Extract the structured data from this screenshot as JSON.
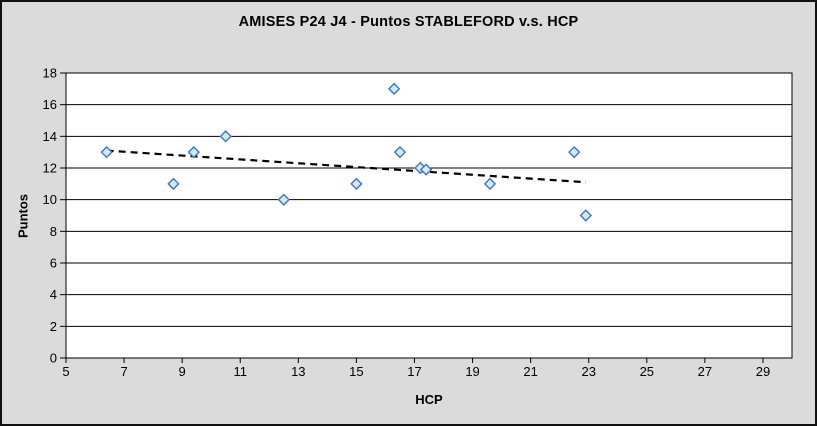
{
  "window": {
    "background_color": "#DBDBDB",
    "border_color": "#111111",
    "plot_background_color": "#FFFFFF",
    "gridline_color": "#000000"
  },
  "chart_data": {
    "type": "scatter",
    "title": "AMISES P24 J4 - Puntos STABLEFORD v.s. HCP",
    "xlabel": "HCP",
    "ylabel": "Puntos",
    "xlim": [
      5,
      30
    ],
    "ylim": [
      0,
      18
    ],
    "x_ticks": [
      5,
      7,
      9,
      11,
      13,
      15,
      17,
      19,
      21,
      23,
      25,
      27,
      29
    ],
    "y_ticks": [
      0,
      2,
      4,
      6,
      8,
      10,
      12,
      14,
      16,
      18
    ],
    "grid": "horizontal",
    "legend": "none",
    "marker": {
      "shape": "diamond",
      "fill": "#CBEDF9",
      "stroke": "#4472C4"
    },
    "points": [
      {
        "x": 6.4,
        "y": 13
      },
      {
        "x": 8.7,
        "y": 11
      },
      {
        "x": 9.4,
        "y": 13
      },
      {
        "x": 10.5,
        "y": 14
      },
      {
        "x": 12.5,
        "y": 10
      },
      {
        "x": 15.0,
        "y": 11
      },
      {
        "x": 16.3,
        "y": 17
      },
      {
        "x": 16.5,
        "y": 13
      },
      {
        "x": 17.2,
        "y": 12
      },
      {
        "x": 17.4,
        "y": 11.9
      },
      {
        "x": 19.6,
        "y": 11
      },
      {
        "x": 22.5,
        "y": 13
      },
      {
        "x": 22.9,
        "y": 9
      }
    ],
    "trendline": {
      "style": "dashed",
      "color": "#000000",
      "x1": 6.4,
      "y1": 13.1,
      "x2": 22.9,
      "y2": 11.1
    }
  }
}
